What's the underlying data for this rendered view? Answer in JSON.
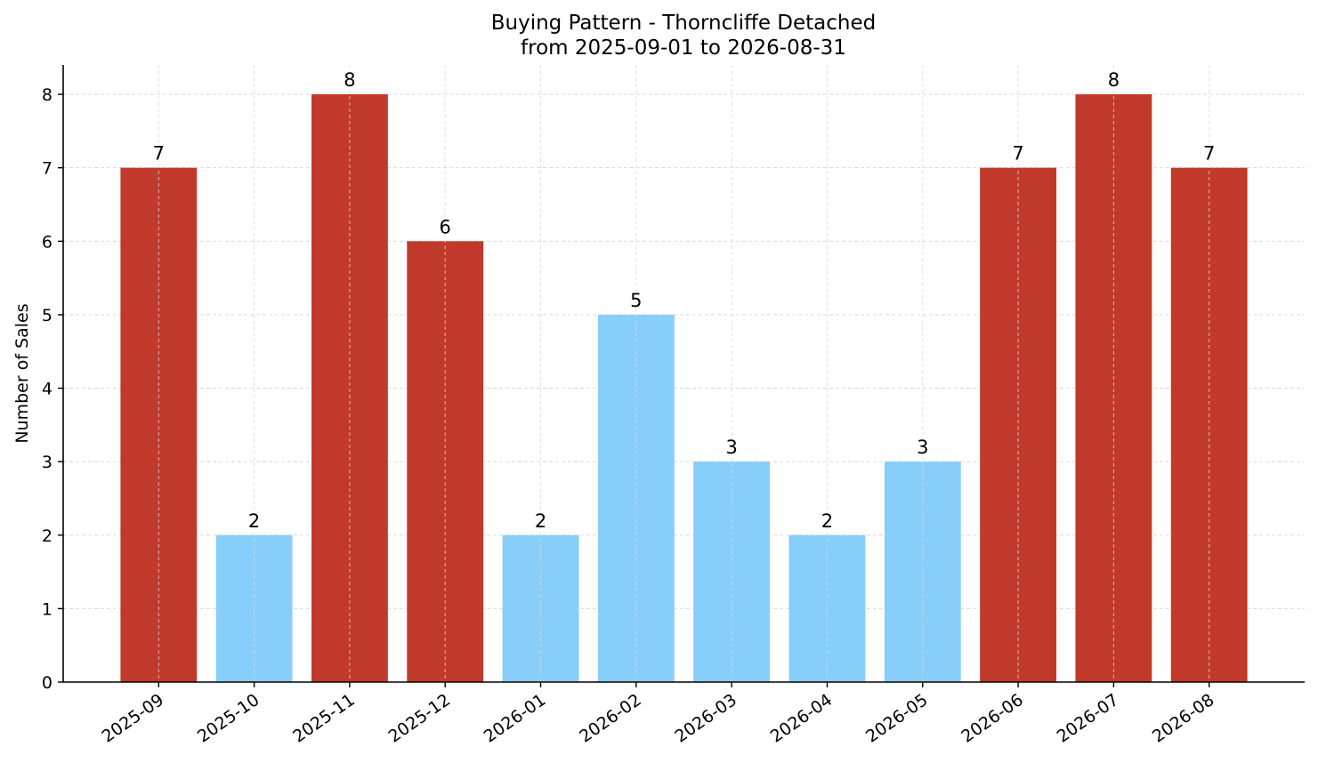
{
  "chart_data": {
    "type": "bar",
    "title": "Buying Pattern - Thorncliffe Detached",
    "subtitle": "from 2025-09-01 to 2026-08-31",
    "xlabel": "",
    "ylabel": "Number of Sales",
    "categories": [
      "2025-09",
      "2025-10",
      "2025-11",
      "2025-12",
      "2026-01",
      "2026-02",
      "2026-03",
      "2026-04",
      "2026-05",
      "2026-06",
      "2026-07",
      "2026-08"
    ],
    "values": [
      7,
      2,
      8,
      6,
      2,
      5,
      3,
      2,
      3,
      7,
      8,
      7
    ],
    "bar_colors": [
      "#c0392b",
      "#87cefa",
      "#c0392b",
      "#c0392b",
      "#87cefa",
      "#87cefa",
      "#87cefa",
      "#87cefa",
      "#87cefa",
      "#c0392b",
      "#c0392b",
      "#c0392b"
    ],
    "ylim": [
      0,
      8.4
    ],
    "yticks": [
      0,
      1,
      2,
      3,
      4,
      5,
      6,
      7,
      8
    ],
    "grid": true,
    "colors": {
      "high": "#c0392b",
      "low": "#87cefa",
      "grid": "#d9d9d9",
      "axis": "#000000"
    }
  }
}
